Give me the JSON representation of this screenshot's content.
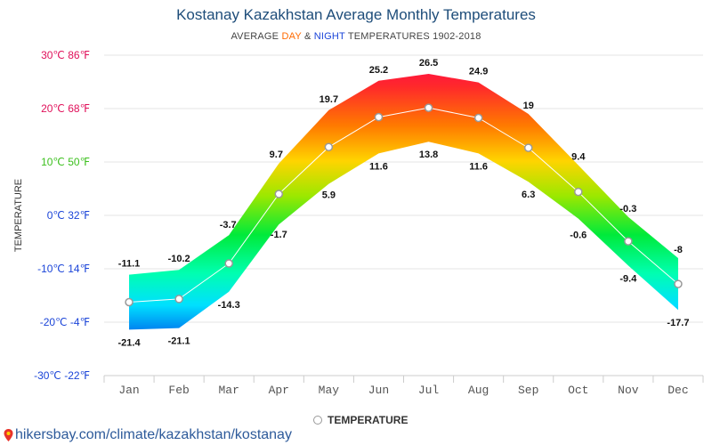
{
  "chart_data": {
    "type": "area",
    "title": "Kostanay Kazakhstan Average Monthly Temperatures",
    "subtitle": {
      "prefix": "AVERAGE ",
      "day": "DAY",
      "amp": " & ",
      "night": "NIGHT",
      "suffix": " TEMPERATURES 1902-2018"
    },
    "ylabel": "TEMPERATURE",
    "categories": [
      "Jan",
      "Feb",
      "Mar",
      "Apr",
      "May",
      "Jun",
      "Jul",
      "Aug",
      "Sep",
      "Oct",
      "Nov",
      "Dec"
    ],
    "series": [
      {
        "name": "DAY",
        "values": [
          -11.1,
          -10.2,
          -3.7,
          9.7,
          19.7,
          25.2,
          26.5,
          24.9,
          19,
          9.4,
          -0.3,
          -8
        ]
      },
      {
        "name": "NIGHT",
        "values": [
          -21.4,
          -21.1,
          -14.3,
          -1.7,
          5.9,
          11.6,
          13.8,
          11.6,
          6.3,
          -0.6,
          -9.4,
          -17.7
        ]
      },
      {
        "name": "TEMPERATURE",
        "values": [
          -16.25,
          -15.65,
          -9,
          4,
          12.8,
          18.4,
          20.15,
          18.25,
          12.65,
          4.4,
          -4.85,
          -12.85
        ]
      }
    ],
    "ylim": [
      -30,
      30
    ],
    "yticks": [
      {
        "value": 30,
        "label": "30℃ 86℉"
      },
      {
        "value": 20,
        "label": "20℃ 68℉"
      },
      {
        "value": 10,
        "label": "10℃ 50℉"
      },
      {
        "value": 0,
        "label": "0℃ 32℉"
      },
      {
        "value": -10,
        "label": "-10℃ 14℉"
      },
      {
        "value": -20,
        "label": "-20℃ -4℉"
      },
      {
        "value": -30,
        "label": "-30℃ -22℉"
      }
    ],
    "legend": {
      "label": "TEMPERATURE",
      "position": "bottom"
    },
    "grid": true
  },
  "colors": {
    "title": "#1e4d7a",
    "day": "#ff6a00",
    "night": "#1a44d8",
    "hot": "#ff1744",
    "warm": "#ffb300",
    "mild": "#c8e600",
    "cool": "#00e676",
    "cold": "#00e5ff",
    "freezing": "#1a3ad8"
  },
  "footer": {
    "url": "hikersbay.com/climate/kazakhstan/kostanay"
  }
}
